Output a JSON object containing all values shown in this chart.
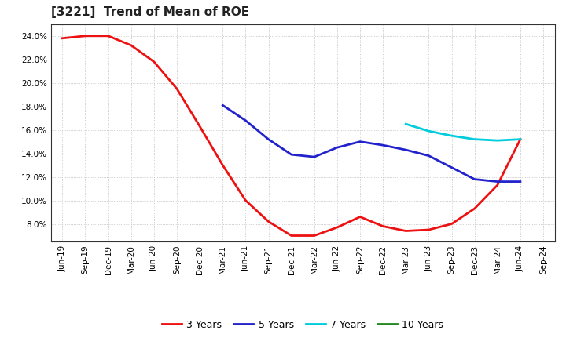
{
  "title": "[3221]  Trend of Mean of ROE",
  "x_labels": [
    "Jun-19",
    "Sep-19",
    "Dec-19",
    "Mar-20",
    "Jun-20",
    "Sep-20",
    "Dec-20",
    "Mar-21",
    "Jun-21",
    "Sep-21",
    "Dec-21",
    "Mar-22",
    "Jun-22",
    "Sep-22",
    "Dec-22",
    "Mar-23",
    "Jun-23",
    "Sep-23",
    "Dec-23",
    "Mar-24",
    "Jun-24",
    "Sep-24"
  ],
  "series_order": [
    "3 Years",
    "5 Years",
    "7 Years",
    "10 Years"
  ],
  "series": {
    "3 Years": {
      "color": "#EE1111",
      "data_x": [
        0,
        1,
        2,
        3,
        4,
        5,
        6,
        7,
        8,
        9,
        10,
        11,
        12,
        13,
        14,
        15,
        16,
        17,
        18,
        19,
        20
      ],
      "data_y": [
        0.238,
        0.24,
        0.24,
        0.232,
        0.218,
        0.195,
        0.163,
        0.13,
        0.1,
        0.082,
        0.07,
        0.07,
        0.077,
        0.086,
        0.078,
        0.074,
        0.075,
        0.08,
        0.093,
        0.113,
        0.152
      ]
    },
    "5 Years": {
      "color": "#2222CC",
      "data_x": [
        7,
        8,
        9,
        10,
        11,
        12,
        13,
        14,
        15,
        16,
        17,
        18,
        19,
        20
      ],
      "data_y": [
        0.181,
        0.168,
        0.152,
        0.139,
        0.137,
        0.145,
        0.15,
        0.147,
        0.143,
        0.138,
        0.128,
        0.118,
        0.116,
        0.116
      ]
    },
    "7 Years": {
      "color": "#00CCDD",
      "data_x": [
        15,
        16,
        17,
        18,
        19,
        20
      ],
      "data_y": [
        0.165,
        0.159,
        0.155,
        0.152,
        0.151,
        0.152
      ]
    },
    "10 Years": {
      "color": "#228822",
      "data_x": [],
      "data_y": []
    }
  },
  "ylim": [
    0.065,
    0.25
  ],
  "yticks": [
    0.08,
    0.1,
    0.12,
    0.14,
    0.16,
    0.18,
    0.2,
    0.22,
    0.24
  ],
  "background_color": "#FFFFFF",
  "plot_bg_color": "#FFFFFF",
  "grid_color": "#BBBBBB",
  "title_fontsize": 11,
  "tick_fontsize": 7.5,
  "linewidth": 2.0
}
